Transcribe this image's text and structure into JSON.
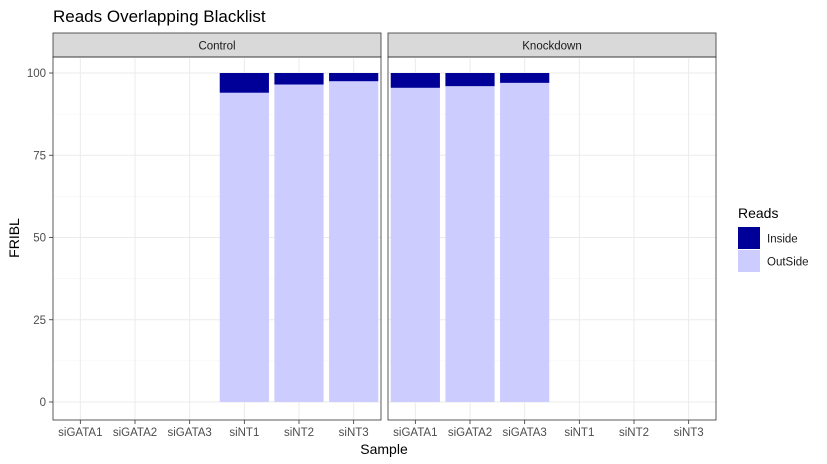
{
  "chart_data": {
    "type": "bar",
    "stacked": true,
    "title": "Reads Overlapping Blacklist",
    "xlabel": "Sample",
    "ylabel": "FRIBL",
    "ylim": [
      0,
      100
    ],
    "yticks": [
      0,
      25,
      50,
      75,
      100
    ],
    "grid": true,
    "legend": {
      "title": "Reads",
      "placement": "right",
      "entries": [
        {
          "name": "Inside",
          "color": "#000099"
        },
        {
          "name": "OutSide",
          "color": "#ccccff"
        }
      ]
    },
    "categories": [
      "siGATA1",
      "siGATA2",
      "siGATA3",
      "siNT1",
      "siNT2",
      "siNT3"
    ],
    "facets": [
      {
        "label": "Control",
        "series": [
          {
            "name": "OutSide",
            "values": [
              null,
              null,
              null,
              94,
              96.5,
              97.5
            ]
          },
          {
            "name": "Inside",
            "values": [
              null,
              null,
              null,
              6,
              3.5,
              2.5
            ]
          }
        ]
      },
      {
        "label": "Knockdown",
        "series": [
          {
            "name": "OutSide",
            "values": [
              95.5,
              96,
              97,
              null,
              null,
              null
            ]
          },
          {
            "name": "Inside",
            "values": [
              4.5,
              4,
              3,
              null,
              null,
              null
            ]
          }
        ]
      }
    ]
  }
}
